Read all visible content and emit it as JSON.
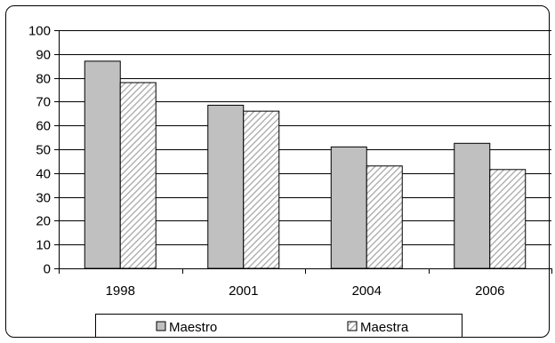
{
  "chart_data": {
    "type": "bar",
    "categories": [
      "1998",
      "2001",
      "2004",
      "2006"
    ],
    "series": [
      {
        "name": "Maestro",
        "values": [
          87,
          68.5,
          51,
          52.5
        ],
        "color": "#c0c0c0",
        "pattern": "solid"
      },
      {
        "name": "Maestra",
        "values": [
          78,
          66,
          43,
          41.5
        ],
        "color": "#c0c0c0",
        "pattern": "diagonal-hatch"
      }
    ],
    "ylim": [
      0,
      100
    ],
    "yticks": [
      0,
      10,
      20,
      30,
      40,
      50,
      60,
      70,
      80,
      90,
      100
    ],
    "grid": true,
    "legend_position": "bottom",
    "title": "",
    "xlabel": "",
    "ylabel": ""
  }
}
